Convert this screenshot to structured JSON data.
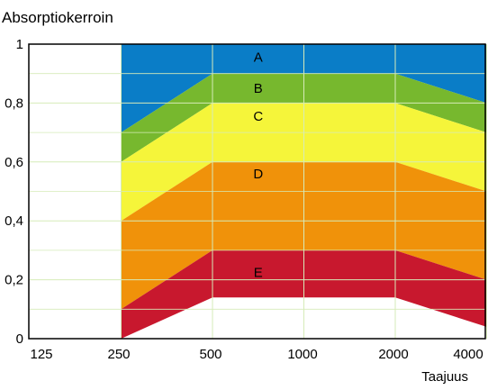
{
  "chart_data": {
    "type": "area",
    "ylabel": "Absorptiokerroin",
    "xlabel": "Taajuus",
    "x_categories": [
      "125",
      "250",
      "500",
      "1000",
      "2000",
      "4000"
    ],
    "y_ticks": [
      {
        "value": 0,
        "label": "0"
      },
      {
        "value": 0.2,
        "label": "0,2"
      },
      {
        "value": 0.4,
        "label": "0,4"
      },
      {
        "value": 0.6,
        "label": "0,6"
      },
      {
        "value": 0.8,
        "label": "0,8"
      },
      {
        "value": 1,
        "label": "1"
      }
    ],
    "ylim": [
      0,
      1
    ],
    "grid": true,
    "band_x": [
      1,
      2,
      4,
      5
    ],
    "boundaries": [
      [
        0.7,
        0.9,
        0.9,
        0.8
      ],
      [
        0.6,
        0.8,
        0.8,
        0.7
      ],
      [
        0.4,
        0.6,
        0.6,
        0.5
      ],
      [
        0.1,
        0.3,
        0.3,
        0.2
      ],
      [
        0.0,
        0.14,
        0.14,
        0.04
      ]
    ],
    "bands": [
      {
        "label": "A",
        "color": "#0a7dc7",
        "label_x": 2.5,
        "label_y": 0.955
      },
      {
        "label": "B",
        "color": "#77b82e",
        "label_x": 2.5,
        "label_y": 0.85
      },
      {
        "label": "C",
        "color": "#f5f53a",
        "label_x": 2.5,
        "label_y": 0.755
      },
      {
        "label": "D",
        "color": "#f0920a",
        "label_x": 2.5,
        "label_y": 0.56
      },
      {
        "label": "E",
        "color": "#c8182e",
        "label_x": 2.5,
        "label_y": 0.225
      }
    ]
  }
}
